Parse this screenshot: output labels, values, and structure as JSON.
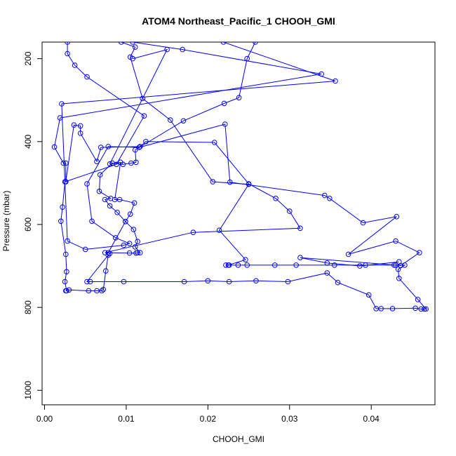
{
  "chart_data": {
    "type": "line",
    "title": "ATOM4 Northeast_Pacific_1 CHOOH_GMI",
    "xlabel": "CHOOH_GMI",
    "ylabel": "Pressure (mbar)",
    "xlim": [
      -0.0003,
      0.0478
    ],
    "ylim": [
      1035,
      160
    ],
    "y_inverted": true,
    "x_ticks": [
      0.0,
      0.01,
      0.02,
      0.03,
      0.04
    ],
    "x_tick_labels": [
      "0.00",
      "0.01",
      "0.02",
      "0.03",
      "0.04"
    ],
    "y_ticks": [
      200,
      400,
      600,
      800,
      1000
    ],
    "y_tick_labels": [
      "200",
      "400",
      "600",
      "800",
      "1000"
    ],
    "grid": false,
    "legend": "none",
    "series_color": "#0000ff",
    "series": [
      {
        "marker": "open-circle",
        "points": [
          [
            0.0028,
            160
          ],
          [
            0.0028,
            188
          ],
          [
            0.0037,
            216
          ],
          [
            0.0052,
            244
          ],
          [
            0.0122,
            338
          ],
          [
            0.0088,
            455
          ],
          [
            0.0025,
            497
          ],
          [
            0.0022,
            558
          ],
          [
            0.002,
            592
          ],
          [
            0.0026,
            672
          ],
          [
            0.0027,
            714
          ],
          [
            0.0025,
            738
          ],
          [
            0.0027,
            760
          ],
          [
            0.0026,
            760
          ],
          [
            0.003,
            758
          ],
          [
            0.0054,
            760
          ],
          [
            0.0064,
            760
          ],
          [
            0.007,
            760
          ],
          [
            0.0072,
            757
          ],
          [
            0.0075,
            712
          ],
          [
            0.0078,
            674
          ],
          [
            0.0052,
            738
          ],
          [
            0.0056,
            738
          ],
          [
            0.0097,
            738
          ],
          [
            0.0171,
            738
          ],
          [
            0.02,
            736
          ],
          [
            0.0226,
            738
          ],
          [
            0.0259,
            736
          ],
          [
            0.0298,
            738
          ],
          [
            0.0346,
            717
          ],
          [
            0.0359,
            740
          ],
          [
            0.0397,
            770
          ],
          [
            0.0406,
            803
          ],
          [
            0.0412,
            803
          ],
          [
            0.0426,
            803
          ],
          [
            0.0454,
            802
          ],
          [
            0.0461,
            804
          ],
          [
            0.0465,
            804
          ],
          [
            0.0467,
            804
          ],
          [
            0.0457,
            781
          ],
          [
            0.0434,
            730
          ],
          [
            0.0433,
            708
          ],
          [
            0.0441,
            698
          ],
          [
            0.043,
            698
          ],
          [
            0.0428,
            698
          ],
          [
            0.0393,
            698
          ],
          [
            0.0355,
            698
          ],
          [
            0.0308,
            698
          ],
          [
            0.0282,
            698
          ],
          [
            0.0248,
            698
          ],
          [
            0.0237,
            698
          ],
          [
            0.0226,
            698
          ],
          [
            0.0222,
            698
          ],
          [
            0.0225,
            698
          ],
          [
            0.0246,
            685
          ],
          [
            0.0214,
            614
          ],
          [
            0.025,
            503
          ],
          [
            0.0206,
            497
          ],
          [
            0.0154,
            348
          ],
          [
            0.012,
            296
          ],
          [
            0.0105,
            196
          ],
          [
            0.0111,
            172
          ],
          [
            0.0094,
            160
          ]
        ]
      },
      {
        "marker": "open-circle",
        "points": [
          [
            0.0108,
            160
          ],
          [
            0.0169,
            178
          ],
          [
            0.0339,
            237
          ],
          [
            0.0019,
            343
          ],
          [
            0.0012,
            413
          ],
          [
            0.0023,
            452
          ],
          [
            0.0026,
            452
          ],
          [
            0.0026,
            497
          ],
          [
            0.0036,
            360
          ],
          [
            0.0044,
            362
          ],
          [
            0.0044,
            380
          ],
          [
            0.0064,
            448
          ],
          [
            0.0069,
            414
          ],
          [
            0.0117,
            412
          ],
          [
            0.0124,
            400
          ],
          [
            0.0208,
            402
          ],
          [
            0.025,
            502
          ],
          [
            0.0283,
            537
          ],
          [
            0.03,
            568
          ],
          [
            0.0313,
            609
          ],
          [
            0.0182,
            619
          ],
          [
            0.0074,
            668
          ],
          [
            0.0104,
            669
          ],
          [
            0.0112,
            669
          ],
          [
            0.0114,
            668
          ],
          [
            0.0117,
            668
          ],
          [
            0.0111,
            654
          ],
          [
            0.0114,
            641
          ],
          [
            0.0109,
            612
          ],
          [
            0.0099,
            593
          ],
          [
            0.0089,
            571
          ],
          [
            0.008,
            555
          ],
          [
            0.0074,
            540
          ],
          [
            0.0081,
            537
          ],
          [
            0.0067,
            520
          ],
          [
            0.0068,
            480
          ],
          [
            0.0083,
            452
          ],
          [
            0.0096,
            455
          ],
          [
            0.0106,
            452
          ],
          [
            0.0112,
            450
          ],
          [
            0.0111,
            420
          ],
          [
            0.017,
            350
          ],
          [
            0.022,
            308
          ],
          [
            0.0238,
            294
          ],
          [
            0.0248,
            200
          ],
          [
            0.0258,
            160
          ]
        ]
      },
      {
        "marker": "open-circle",
        "points": [
          [
            0.0219,
            160
          ],
          [
            0.0356,
            254
          ],
          [
            0.0021,
            309
          ],
          [
            0.0028,
            640
          ],
          [
            0.005,
            660
          ],
          [
            0.0097,
            650
          ],
          [
            0.0104,
            646
          ],
          [
            0.0087,
            632
          ],
          [
            0.0058,
            592
          ],
          [
            0.0052,
            502
          ],
          [
            0.0078,
            412
          ],
          [
            0.0116,
            414
          ],
          [
            0.0221,
            358
          ],
          [
            0.0227,
            498
          ],
          [
            0.0343,
            530
          ],
          [
            0.0349,
            537
          ],
          [
            0.039,
            596
          ],
          [
            0.0431,
            581
          ],
          [
            0.0372,
            672
          ],
          [
            0.043,
            640
          ],
          [
            0.0459,
            668
          ],
          [
            0.0436,
            699
          ],
          [
            0.0313,
            680
          ],
          [
            0.0346,
            693
          ],
          [
            0.0386,
            700
          ],
          [
            0.0434,
            690
          ]
        ]
      },
      {
        "marker": "open-circle",
        "points": [
          [
            0.0108,
            200
          ],
          [
            0.015,
            178
          ],
          [
            0.008,
            454
          ],
          [
            0.0093,
            450
          ],
          [
            0.0086,
            540
          ],
          [
            0.0092,
            540
          ],
          [
            0.011,
            548
          ],
          [
            0.0105,
            575
          ],
          [
            0.0099,
            593
          ],
          [
            0.0078,
            668
          ],
          [
            0.008,
            670
          ]
        ]
      }
    ]
  }
}
